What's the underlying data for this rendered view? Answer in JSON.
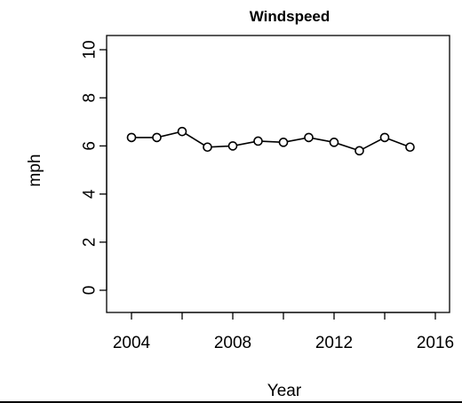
{
  "chart_data": {
    "type": "line",
    "title": "Windspeed",
    "xlabel": "Year",
    "ylabel": "mph",
    "x": [
      2004,
      2005,
      2006,
      2007,
      2008,
      2009,
      2010,
      2011,
      2012,
      2013,
      2014,
      2015
    ],
    "y": [
      6.35,
      6.35,
      6.6,
      5.95,
      6.0,
      6.2,
      6.15,
      6.35,
      6.15,
      5.8,
      6.35,
      5.95
    ],
    "xlim": [
      2004,
      2016
    ],
    "ylim": [
      0,
      10
    ],
    "xticks": [
      2004,
      2008,
      2012,
      2016
    ],
    "xticks_minor": [
      2004,
      2006,
      2008,
      2010,
      2012,
      2014,
      2016
    ],
    "yticks": [
      0,
      2,
      4,
      6,
      8,
      10
    ],
    "grid": false,
    "marker": "open-circle"
  }
}
